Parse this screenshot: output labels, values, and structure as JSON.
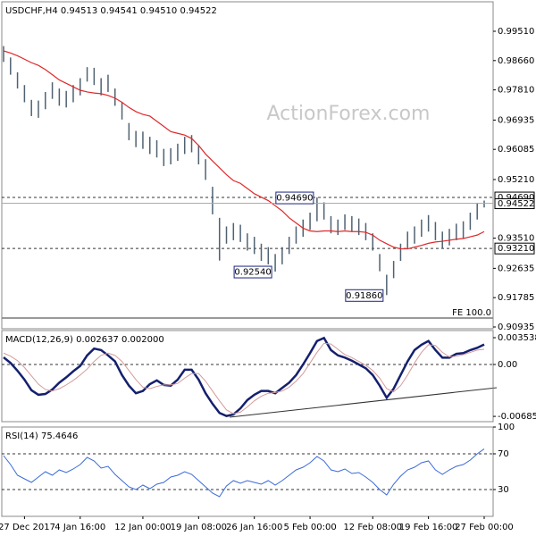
{
  "chart_data": [
    {
      "type": "ohlc",
      "title": "USDCHF,H4 0.94513 0.94541 0.94510 0.94522",
      "watermark": "ActionForex.com",
      "fe_label": "FE 100.0",
      "xlim": [
        0,
        69
      ],
      "ylim": [
        0.90883,
        1.00365
      ],
      "yticks": [
        {
          "value": 0.9951,
          "label": "0.99510"
        },
        {
          "value": 0.9866,
          "label": "0.98660"
        },
        {
          "value": 0.9781,
          "label": "0.97810"
        },
        0.96935,
        {
          "value": 0.96085,
          "label": "0.96085"
        },
        {
          "value": 0.9521,
          "label": "0.95210"
        },
        {
          "value": 0.9351,
          "label": "0.93510"
        },
        0.92635,
        0.91785,
        0.90935
      ],
      "bar_color": "#4f6272",
      "high": [
        0.9908,
        0.9875,
        0.9832,
        0.9795,
        0.9752,
        0.975,
        0.9775,
        0.9803,
        0.9785,
        0.9778,
        0.9795,
        0.9815,
        0.9847,
        0.9845,
        0.9815,
        0.9825,
        0.9785,
        0.9745,
        0.9685,
        0.9662,
        0.966,
        0.9645,
        0.9635,
        0.961,
        0.9612,
        0.9625,
        0.9645,
        0.965,
        0.962,
        0.958,
        0.95,
        0.941,
        0.9385,
        0.9395,
        0.939,
        0.9365,
        0.9355,
        0.9335,
        0.9325,
        0.9305,
        0.9325,
        0.9355,
        0.9385,
        0.9405,
        0.9425,
        0.9469,
        0.9455,
        0.9415,
        0.9405,
        0.942,
        0.9415,
        0.9408,
        0.9395,
        0.9365,
        0.9305,
        0.9245,
        0.9285,
        0.9335,
        0.937,
        0.9385,
        0.9405,
        0.9418,
        0.9398,
        0.937,
        0.9378,
        0.9393,
        0.94,
        0.9425,
        0.9452,
        0.946
      ],
      "low": [
        0.9862,
        0.9825,
        0.9785,
        0.9745,
        0.9705,
        0.97,
        0.9725,
        0.9755,
        0.9735,
        0.973,
        0.9745,
        0.9765,
        0.9805,
        0.9795,
        0.9765,
        0.9775,
        0.9735,
        0.9695,
        0.9635,
        0.9615,
        0.961,
        0.9595,
        0.9585,
        0.956,
        0.9565,
        0.9575,
        0.9595,
        0.96,
        0.9565,
        0.952,
        0.942,
        0.9286,
        0.9335,
        0.9345,
        0.934,
        0.9315,
        0.9305,
        0.9285,
        0.9275,
        0.9254,
        0.9275,
        0.9305,
        0.9335,
        0.9355,
        0.9375,
        0.94,
        0.9405,
        0.9365,
        0.936,
        0.9375,
        0.937,
        0.936,
        0.9345,
        0.9315,
        0.9255,
        0.9186,
        0.9235,
        0.9285,
        0.932,
        0.9335,
        0.9355,
        0.937,
        0.9345,
        0.932,
        0.933,
        0.9345,
        0.935,
        0.9375,
        0.9405,
        0.944
      ],
      "ma": {
        "color": "#e0282a",
        "values": [
          0.9894,
          0.9888,
          0.988,
          0.987,
          0.986,
          0.9852,
          0.984,
          0.9825,
          0.981,
          0.98,
          0.979,
          0.978,
          0.9775,
          0.9772,
          0.977,
          0.9765,
          0.9757,
          0.9745,
          0.973,
          0.9718,
          0.971,
          0.9705,
          0.969,
          0.9675,
          0.966,
          0.9655,
          0.965,
          0.964,
          0.962,
          0.9595,
          0.9575,
          0.9555,
          0.9535,
          0.9518,
          0.951,
          0.9495,
          0.948,
          0.947,
          0.946,
          0.9445,
          0.943,
          0.941,
          0.9395,
          0.938,
          0.9372,
          0.937,
          0.9372,
          0.9372,
          0.937,
          0.9372,
          0.937,
          0.937,
          0.9368,
          0.936,
          0.9345,
          0.9335,
          0.9325,
          0.932,
          0.932,
          0.9325,
          0.933,
          0.9336,
          0.934,
          0.9342,
          0.9345,
          0.9348,
          0.935,
          0.9355,
          0.936,
          0.937
        ]
      },
      "levels": [
        {
          "value": 0.9469,
          "label": "0.94690"
        },
        {
          "value": 0.9321,
          "label": "0.93210"
        }
      ],
      "current": {
        "value": 0.94522,
        "label": "0.94522"
      },
      "annotations": [
        {
          "x": 45,
          "value": 0.9469,
          "label": "0.94690"
        },
        {
          "x": 39,
          "value": 0.9254,
          "label": "0.92540"
        },
        {
          "x": 55,
          "value": 0.9186,
          "label": "0.91860"
        }
      ]
    },
    {
      "type": "macd",
      "title": "MACD(12,26,9) 0.002637 0.002000",
      "ylim": [
        -0.00755,
        0.00448
      ],
      "yticks": [
        0.003538,
        {
          "value": 0,
          "label": "0.00"
        },
        -0.006853
      ],
      "levels": [
        0
      ],
      "series": [
        {
          "color": "#14206e",
          "values": [
            0.00094,
            0.0002,
            -0.00083,
            -0.002,
            -0.0034,
            -0.004,
            -0.0039,
            -0.0033,
            -0.0024,
            -0.0017,
            -0.0009,
            -0.0002,
            0.0012,
            0.0021,
            0.0019,
            0.0012,
            0.0004,
            -0.0014,
            -0.0028,
            -0.0038,
            -0.0035,
            -0.0026,
            -0.0021,
            -0.0027,
            -0.0028,
            -0.002,
            -0.0007,
            -0.0007,
            -0.002,
            -0.0038,
            -0.0052,
            -0.0064,
            -0.0068,
            -0.0066,
            -0.0058,
            -0.0047,
            -0.004,
            -0.0035,
            -0.0035,
            -0.0038,
            -0.0031,
            -0.0024,
            -0.0014,
            0,
            0.0015,
            0.0031,
            0.0035,
            0.0019,
            0.0012,
            0.0009,
            0.0005,
            0,
            -0.0005,
            -0.0014,
            -0.0028,
            -0.0044,
            -0.0032,
            -0.0014,
            0.0004,
            0.0019,
            0.0026,
            0.0031,
            0.0019,
            0.0009,
            0.0009,
            0.0014,
            0.0015,
            0.0019,
            0.0022,
            0.002637
          ]
        },
        {
          "color": "#d49a9a",
          "values": [
            0.0015,
            0.0011,
            0.0005,
            -0.0004,
            -0.0015,
            -0.0026,
            -0.0033,
            -0.0035,
            -0.0032,
            -0.0027,
            -0.0021,
            -0.0014,
            -0.0006,
            0.0004,
            0.0012,
            0.0015,
            0.0012,
            0.0004,
            -0.0008,
            -0.002,
            -0.003,
            -0.0032,
            -0.0029,
            -0.0027,
            -0.0027,
            -0.0025,
            -0.0018,
            -0.0012,
            -0.0012,
            -0.0022,
            -0.0035,
            -0.0048,
            -0.006,
            -0.0065,
            -0.0063,
            -0.0056,
            -0.0048,
            -0.0042,
            -0.0038,
            -0.0037,
            -0.0035,
            -0.003,
            -0.0022,
            -0.0012,
            0.0002,
            0.0016,
            0.0028,
            0.0027,
            0.002,
            0.0013,
            0.0009,
            0.0004,
            -0.0001,
            -0.0008,
            -0.0018,
            -0.0032,
            -0.0036,
            -0.0028,
            -0.0014,
            0.0002,
            0.0016,
            0.0026,
            0.0025,
            0.0016,
            0.001,
            0.0011,
            0.0013,
            0.0016,
            0.0019,
            0.002
          ]
        }
      ]
    },
    {
      "type": "rsi",
      "title": "RSI(14) 75.4646",
      "ylim": [
        0,
        100
      ],
      "yticks": [
        100,
        70,
        30
      ],
      "levels": [
        70,
        30
      ],
      "xticks": [
        {
          "value": 3,
          "label": "27 Dec 2017"
        },
        {
          "value": 11,
          "label": "4 Jan 16:00"
        },
        {
          "value": 20,
          "label": "12 Jan 00:00"
        },
        {
          "value": 28,
          "label": "19 Jan 08:00"
        },
        {
          "value": 36,
          "label": "26 Jan 16:00"
        },
        {
          "value": 44,
          "label": "5 Feb 00:00"
        },
        {
          "value": 53,
          "label": "12 Feb 08:00"
        },
        {
          "value": 61,
          "label": "19 Feb 16:00"
        },
        {
          "value": 69,
          "label": "27 Feb 00:00"
        }
      ],
      "series": [
        {
          "color": "#3a6ad8",
          "values": [
            68,
            58,
            46,
            42,
            38,
            44,
            50,
            46,
            52,
            49,
            53,
            58,
            66,
            62,
            54,
            56,
            47,
            40,
            33,
            30,
            35,
            31,
            36,
            38,
            44,
            46,
            50,
            47,
            40,
            33,
            26,
            22,
            34,
            40,
            37,
            40,
            38,
            36,
            40,
            35,
            40,
            46,
            52,
            55,
            60,
            67,
            62,
            52,
            50,
            53,
            48,
            49,
            44,
            38,
            30,
            24,
            36,
            45,
            52,
            55,
            60,
            62,
            52,
            47,
            52,
            56,
            58,
            63,
            70,
            75.4646
          ]
        }
      ]
    }
  ]
}
